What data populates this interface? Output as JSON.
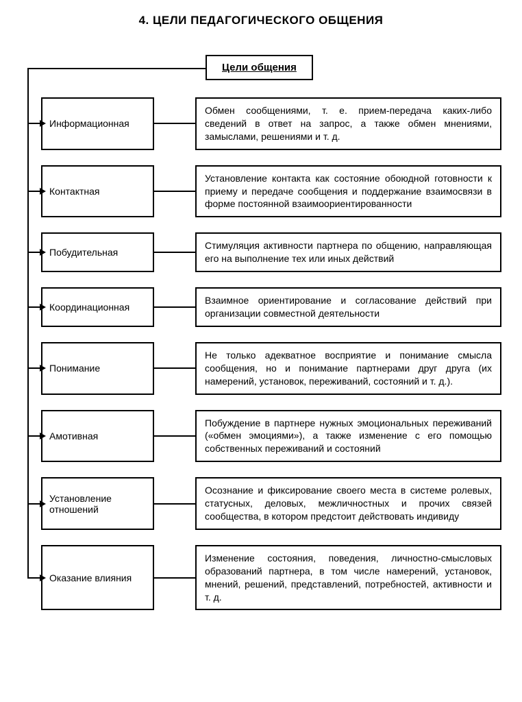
{
  "title": "4. ЦЕЛИ ПЕДАГОГИЧЕСКОГО ОБЩЕНИЯ",
  "root_label": "Цели общения",
  "colors": {
    "border": "#000000",
    "background": "#ffffff",
    "text": "#000000"
  },
  "font_sizes": {
    "title": 17,
    "root": 15,
    "body": 14
  },
  "items": [
    {
      "label": "Информационная",
      "desc": "Обмен сообщениями, т. е. прием-передача каких-либо сведений в ответ на запрос, а также обмен мнениями, замыслами, решениями и т. д."
    },
    {
      "label": "Контактная",
      "desc": "Установление контакта как состояние обоюдной готовности к приему и передаче сообщения и поддержание взаимосвязи в форме постоянной взаимоориентированности"
    },
    {
      "label": "Побудительная",
      "desc": "Стимуляция активности партнера по общению, направляющая его на выполнение тех или иных действий"
    },
    {
      "label": "Координационная",
      "desc": "Взаимное ориентирование и согласование действий при организации совместной деятельности"
    },
    {
      "label": "Понимание",
      "desc": "Не только адекватное восприятие и понимание смысла сообщения, но и понимание партнерами друг друга (их намерений, установок, переживаний, состояний и т. д.)."
    },
    {
      "label": "Амотивная",
      "desc": "Побуждение в партнере нужных эмоциональных переживаний («обмен эмоциями»), а также изменение с его помощью собственных переживаний и состояний"
    },
    {
      "label": "Установление отношений",
      "desc": "Осознание и фиксирование своего места в системе ролевых, статусных, деловых, межличностных и прочих связей сообщества, в котором предстоит действовать индивиду"
    },
    {
      "label": "Оказание влияния",
      "desc": "Изменение состояния, поведения, личностно-смысловых образований партнера, в том числе намерений, установок, мнений, решений, представлений, потребностей, активности и т. д."
    }
  ]
}
